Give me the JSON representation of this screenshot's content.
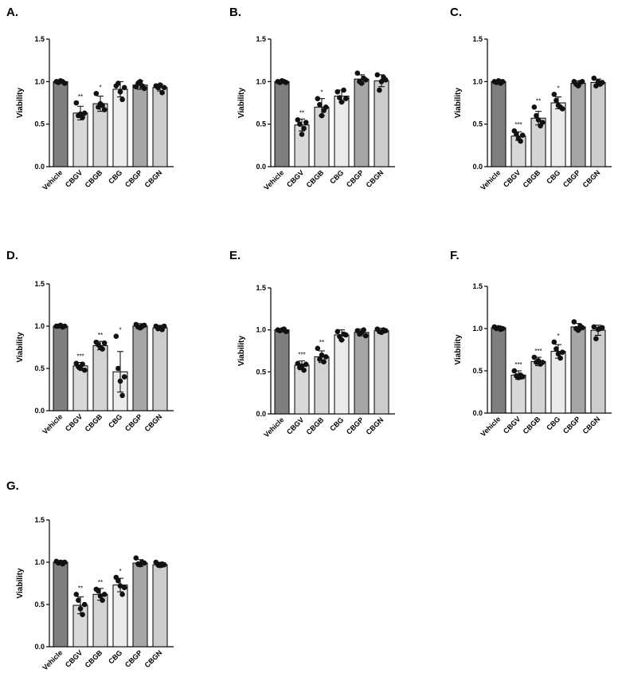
{
  "chart_data": [
    {
      "type": "bar",
      "panel": "A.",
      "ylabel": "Viability",
      "ylim": [
        0,
        1.5
      ],
      "yticks": [
        "0.0",
        "0.5",
        "1.0",
        "1.5"
      ],
      "categories": [
        "Vehicle",
        "CBGV",
        "CBGB",
        "CBG",
        "CBGP",
        "CBGN"
      ],
      "values": [
        1.0,
        0.63,
        0.74,
        0.91,
        0.96,
        0.93
      ],
      "errors": [
        0.02,
        0.08,
        0.09,
        0.09,
        0.05,
        0.04
      ],
      "significance": [
        "",
        "**",
        "*",
        "",
        "",
        ""
      ],
      "points": [
        [
          1.0,
          0.99,
          1.01,
          1.0,
          0.98
        ],
        [
          0.75,
          0.6,
          0.62,
          0.58,
          0.63
        ],
        [
          0.86,
          0.7,
          0.74,
          0.72,
          0.67
        ],
        [
          0.95,
          0.98,
          0.88,
          0.79,
          0.93
        ],
        [
          0.94,
          0.98,
          1.0,
          0.95,
          0.92
        ],
        [
          0.95,
          0.93,
          0.96,
          0.87,
          0.93
        ]
      ]
    },
    {
      "type": "bar",
      "panel": "B.",
      "ylabel": "Viability",
      "ylim": [
        0,
        1.5
      ],
      "yticks": [
        "0.0",
        "0.5",
        "1.0",
        "1.5"
      ],
      "categories": [
        "Vehicle",
        "CBGV",
        "CBGB",
        "CBG",
        "CBGP",
        "CBGN"
      ],
      "values": [
        1.0,
        0.49,
        0.7,
        0.83,
        1.03,
        1.01
      ],
      "errors": [
        0.02,
        0.07,
        0.1,
        0.07,
        0.05,
        0.07
      ],
      "significance": [
        "",
        "**",
        "*",
        "",
        "",
        ""
      ],
      "points": [
        [
          1.0,
          0.99,
          1.01,
          1.0,
          0.99
        ],
        [
          0.55,
          0.5,
          0.38,
          0.45,
          0.52
        ],
        [
          0.8,
          0.73,
          0.6,
          0.66,
          0.7
        ],
        [
          0.88,
          0.81,
          0.76,
          0.9,
          0.8
        ],
        [
          1.1,
          1.0,
          0.98,
          1.04,
          1.02
        ],
        [
          1.08,
          0.9,
          1.0,
          1.05,
          1.02
        ]
      ]
    },
    {
      "type": "bar",
      "panel": "C.",
      "ylabel": "Viability",
      "ylim": [
        0,
        1.5
      ],
      "yticks": [
        "0.0",
        "0.5",
        "1.0",
        "1.5"
      ],
      "categories": [
        "Vehicle",
        "CBGV",
        "CBGB",
        "CBG",
        "CBGP",
        "CBGN"
      ],
      "values": [
        1.0,
        0.36,
        0.57,
        0.75,
        0.98,
        0.99
      ],
      "errors": [
        0.02,
        0.05,
        0.08,
        0.07,
        0.03,
        0.04
      ],
      "significance": [
        "",
        "***",
        "**",
        "*",
        "",
        ""
      ],
      "points": [
        [
          1.0,
          0.99,
          1.01,
          0.98,
          1.0
        ],
        [
          0.42,
          0.38,
          0.33,
          0.3,
          0.37
        ],
        [
          0.7,
          0.6,
          0.55,
          0.48,
          0.52
        ],
        [
          0.85,
          0.78,
          0.72,
          0.7,
          0.68
        ],
        [
          1.0,
          0.97,
          0.95,
          0.99,
          1.0
        ],
        [
          1.04,
          0.95,
          1.0,
          0.97,
          0.99
        ]
      ]
    },
    {
      "type": "bar",
      "panel": "D.",
      "ylabel": "Viability",
      "ylim": [
        0,
        1.5
      ],
      "yticks": [
        "0.0",
        "0.5",
        "1.0",
        "1.5"
      ],
      "categories": [
        "Vehicle",
        "CBGV",
        "CBGB",
        "CBG",
        "CBGP",
        "CBGN"
      ],
      "values": [
        1.0,
        0.53,
        0.77,
        0.46,
        1.0,
        0.98
      ],
      "errors": [
        0.01,
        0.04,
        0.05,
        0.24,
        0.03,
        0.03
      ],
      "significance": [
        "",
        "***",
        "**",
        "*",
        "",
        ""
      ],
      "points": [
        [
          1.0,
          1.0,
          1.01,
          0.99,
          1.0
        ],
        [
          0.56,
          0.52,
          0.5,
          0.55,
          0.48
        ],
        [
          0.81,
          0.78,
          0.75,
          0.73,
          0.8
        ],
        [
          0.88,
          0.5,
          0.35,
          0.18,
          0.4
        ],
        [
          1.02,
          0.99,
          0.98,
          1.0,
          1.01
        ],
        [
          1.0,
          0.97,
          0.98,
          0.96,
          1.0
        ]
      ]
    },
    {
      "type": "bar",
      "panel": "E.",
      "ylabel": "Viability",
      "ylim": [
        0,
        1.5
      ],
      "yticks": [
        "0.0",
        "0.5",
        "1.0",
        "1.5"
      ],
      "categories": [
        "Vehicle",
        "CBGV",
        "CBGB",
        "CBG",
        "CBGP",
        "CBGN"
      ],
      "values": [
        1.0,
        0.58,
        0.68,
        0.94,
        0.97,
        0.99
      ],
      "errors": [
        0.01,
        0.05,
        0.07,
        0.06,
        0.04,
        0.03
      ],
      "significance": [
        "",
        "***",
        "**",
        "",
        "",
        ""
      ],
      "points": [
        [
          1.0,
          0.99,
          1.0,
          1.01,
          0.98
        ],
        [
          0.6,
          0.55,
          0.57,
          0.52,
          0.59
        ],
        [
          0.78,
          0.65,
          0.7,
          0.62,
          0.68
        ],
        [
          0.98,
          0.92,
          0.88,
          0.95,
          0.94
        ],
        [
          0.99,
          0.95,
          0.97,
          1.0,
          0.93
        ],
        [
          1.01,
          0.98,
          0.97,
          1.0,
          0.99
        ]
      ]
    },
    {
      "type": "bar",
      "panel": "F.",
      "ylabel": "Viability",
      "ylim": [
        0,
        1.5
      ],
      "yticks": [
        "0.0",
        "0.5",
        "1.0",
        "1.5"
      ],
      "categories": [
        "Vehicle",
        "CBGV",
        "CBGB",
        "CBG",
        "CBGP",
        "CBGN"
      ],
      "values": [
        1.01,
        0.45,
        0.61,
        0.73,
        1.02,
        0.98
      ],
      "errors": [
        0.02,
        0.05,
        0.05,
        0.08,
        0.04,
        0.06
      ],
      "significance": [
        "",
        "***",
        "***",
        "*",
        "",
        ""
      ],
      "points": [
        [
          1.02,
          1.0,
          1.01,
          0.99,
          1.0
        ],
        [
          0.5,
          0.44,
          0.42,
          0.45,
          0.43
        ],
        [
          0.66,
          0.6,
          0.62,
          0.58,
          0.6
        ],
        [
          0.84,
          0.76,
          0.7,
          0.65,
          0.72
        ],
        [
          1.08,
          1.0,
          0.98,
          1.03,
          1.01
        ],
        [
          1.02,
          0.88,
          0.99,
          1.0,
          1.01
        ]
      ]
    },
    {
      "type": "bar",
      "panel": "G.",
      "ylabel": "Viability",
      "ylim": [
        0,
        1.5
      ],
      "yticks": [
        "0.0",
        "0.5",
        "1.0",
        "1.5"
      ],
      "categories": [
        "Vehicle",
        "CBGV",
        "CBGB",
        "CBG",
        "CBGP",
        "CBGN"
      ],
      "values": [
        1.0,
        0.49,
        0.62,
        0.73,
        0.99,
        0.97
      ],
      "errors": [
        0.02,
        0.1,
        0.07,
        0.08,
        0.04,
        0.03
      ],
      "significance": [
        "",
        "**",
        "**",
        "*",
        "",
        ""
      ],
      "points": [
        [
          1.01,
          0.99,
          1.0,
          0.98,
          1.0
        ],
        [
          0.62,
          0.55,
          0.45,
          0.38,
          0.5
        ],
        [
          0.68,
          0.66,
          0.6,
          0.55,
          0.62
        ],
        [
          0.82,
          0.78,
          0.72,
          0.62,
          0.7
        ],
        [
          1.05,
          0.98,
          0.97,
          1.0,
          0.99
        ],
        [
          1.0,
          0.97,
          0.96,
          0.98,
          0.97
        ]
      ]
    }
  ],
  "style": {
    "bar_colors": [
      "#7f7f7f",
      "#d9d9d9",
      "#d4d4d4",
      "#ebebeb",
      "#a6a6a6",
      "#cccccc"
    ],
    "point_color": "#111111"
  }
}
